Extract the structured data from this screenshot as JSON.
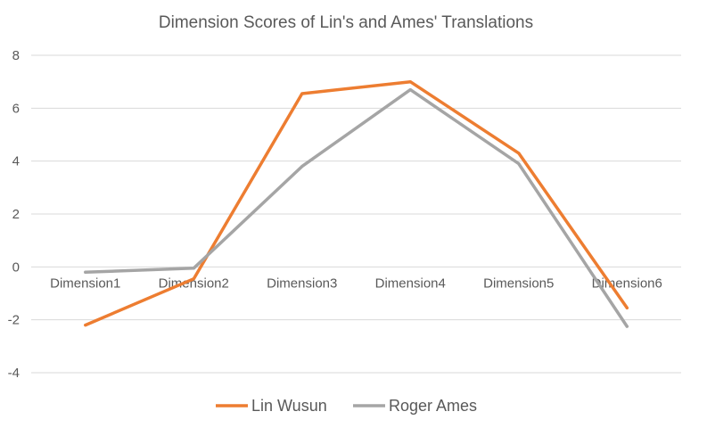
{
  "chart_data": {
    "type": "line",
    "title": "Dimension Scores of Lin's and Ames' Translations",
    "xlabel": "",
    "ylabel": "",
    "categories": [
      "Dimension1",
      "Dimension2",
      "Dimension3",
      "Dimension4",
      "Dimension5",
      "Dimension6"
    ],
    "ylim": [
      -4,
      8
    ],
    "yticks": [
      -4,
      -2,
      0,
      2,
      4,
      6,
      8
    ],
    "grid": true,
    "legend": "bottom",
    "series": [
      {
        "name": "Lin Wusun",
        "color": "#ED7D31",
        "values": [
          -2.2,
          -0.45,
          6.55,
          7.0,
          4.3,
          -1.55
        ]
      },
      {
        "name": "Roger Ames",
        "color": "#A5A5A5",
        "values": [
          -0.2,
          -0.05,
          3.8,
          6.7,
          3.9,
          -2.25
        ]
      }
    ]
  }
}
